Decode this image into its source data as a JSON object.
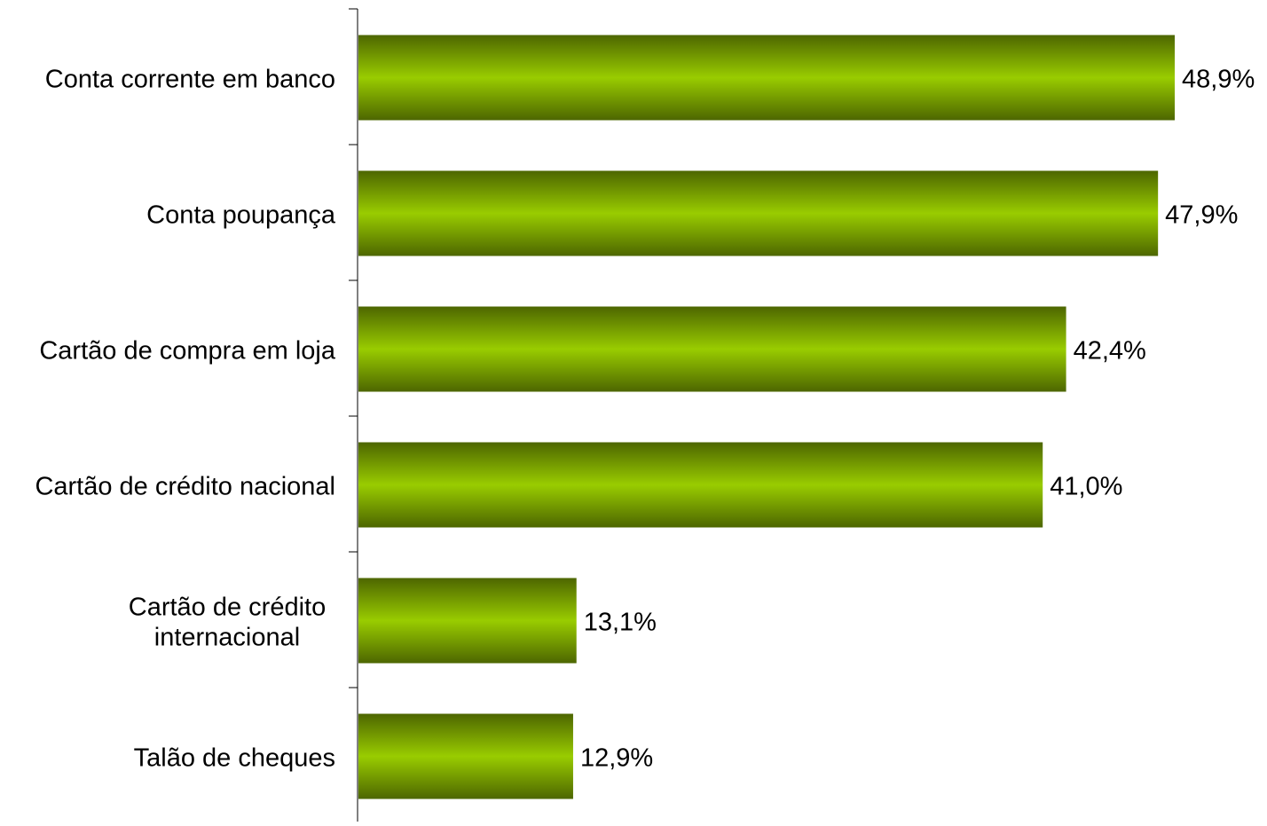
{
  "chart_data": {
    "type": "bar",
    "orientation": "horizontal",
    "categories": [
      [
        "Conta corrente em banco"
      ],
      [
        "Conta poupança"
      ],
      [
        "Cartão de compra em loja"
      ],
      [
        "Cartão de crédito nacional"
      ],
      [
        "Cartão de crédito",
        "internacional"
      ],
      [
        "Talão de cheques"
      ]
    ],
    "values": [
      48.9,
      47.9,
      42.4,
      41.0,
      13.1,
      12.9
    ],
    "value_labels": [
      "48,9%",
      "47,9%",
      "42,4%",
      "41,0%",
      "13,1%",
      "12,9%"
    ],
    "unit": "%",
    "xlim": [
      0,
      50
    ],
    "grid": false,
    "legend": "none",
    "title": "",
    "xlabel": "",
    "ylabel": "",
    "colors": {
      "bar_center": "#99cc00",
      "bar_edge": "#4d6600",
      "axis": "#000000"
    }
  }
}
